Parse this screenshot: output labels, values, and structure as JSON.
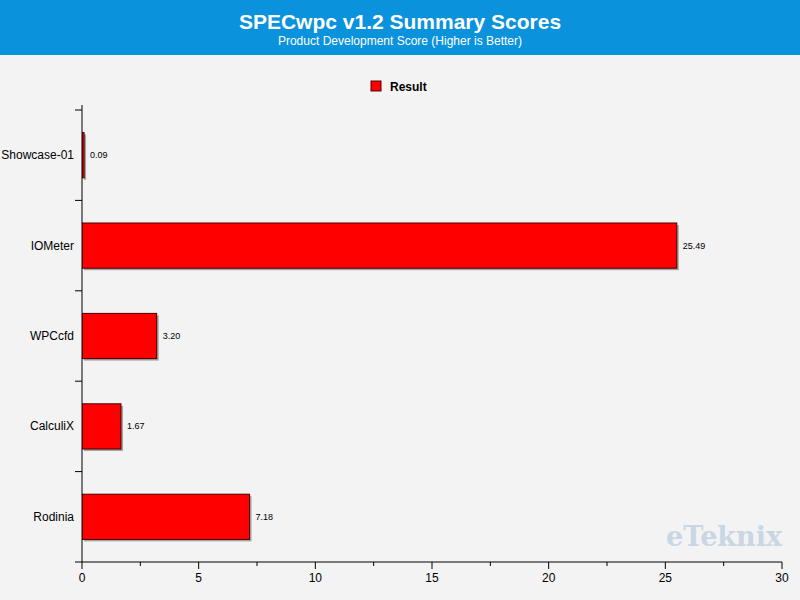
{
  "chart_data": {
    "type": "bar",
    "orientation": "horizontal",
    "title": "SPECwpc v1.2 Summary Scores",
    "subtitle": "Product Development Score (Higher is Better)",
    "categories": [
      "Showcase-01",
      "IOMeter",
      "WPCcfd",
      "CalculiX",
      "Rodinia"
    ],
    "series": [
      {
        "name": "Result",
        "color": "#ff0000",
        "values": [
          0.09,
          25.49,
          3.2,
          1.67,
          7.18
        ],
        "value_labels": [
          "0.09",
          "25.49",
          "3.20",
          "1.67",
          "7.18"
        ]
      }
    ],
    "xlim": [
      0,
      30
    ],
    "xticks": [
      0,
      5,
      10,
      15,
      20,
      25,
      30
    ],
    "grid": false,
    "legend": "top",
    "data_labels": true,
    "annotation": "eTeknix"
  }
}
